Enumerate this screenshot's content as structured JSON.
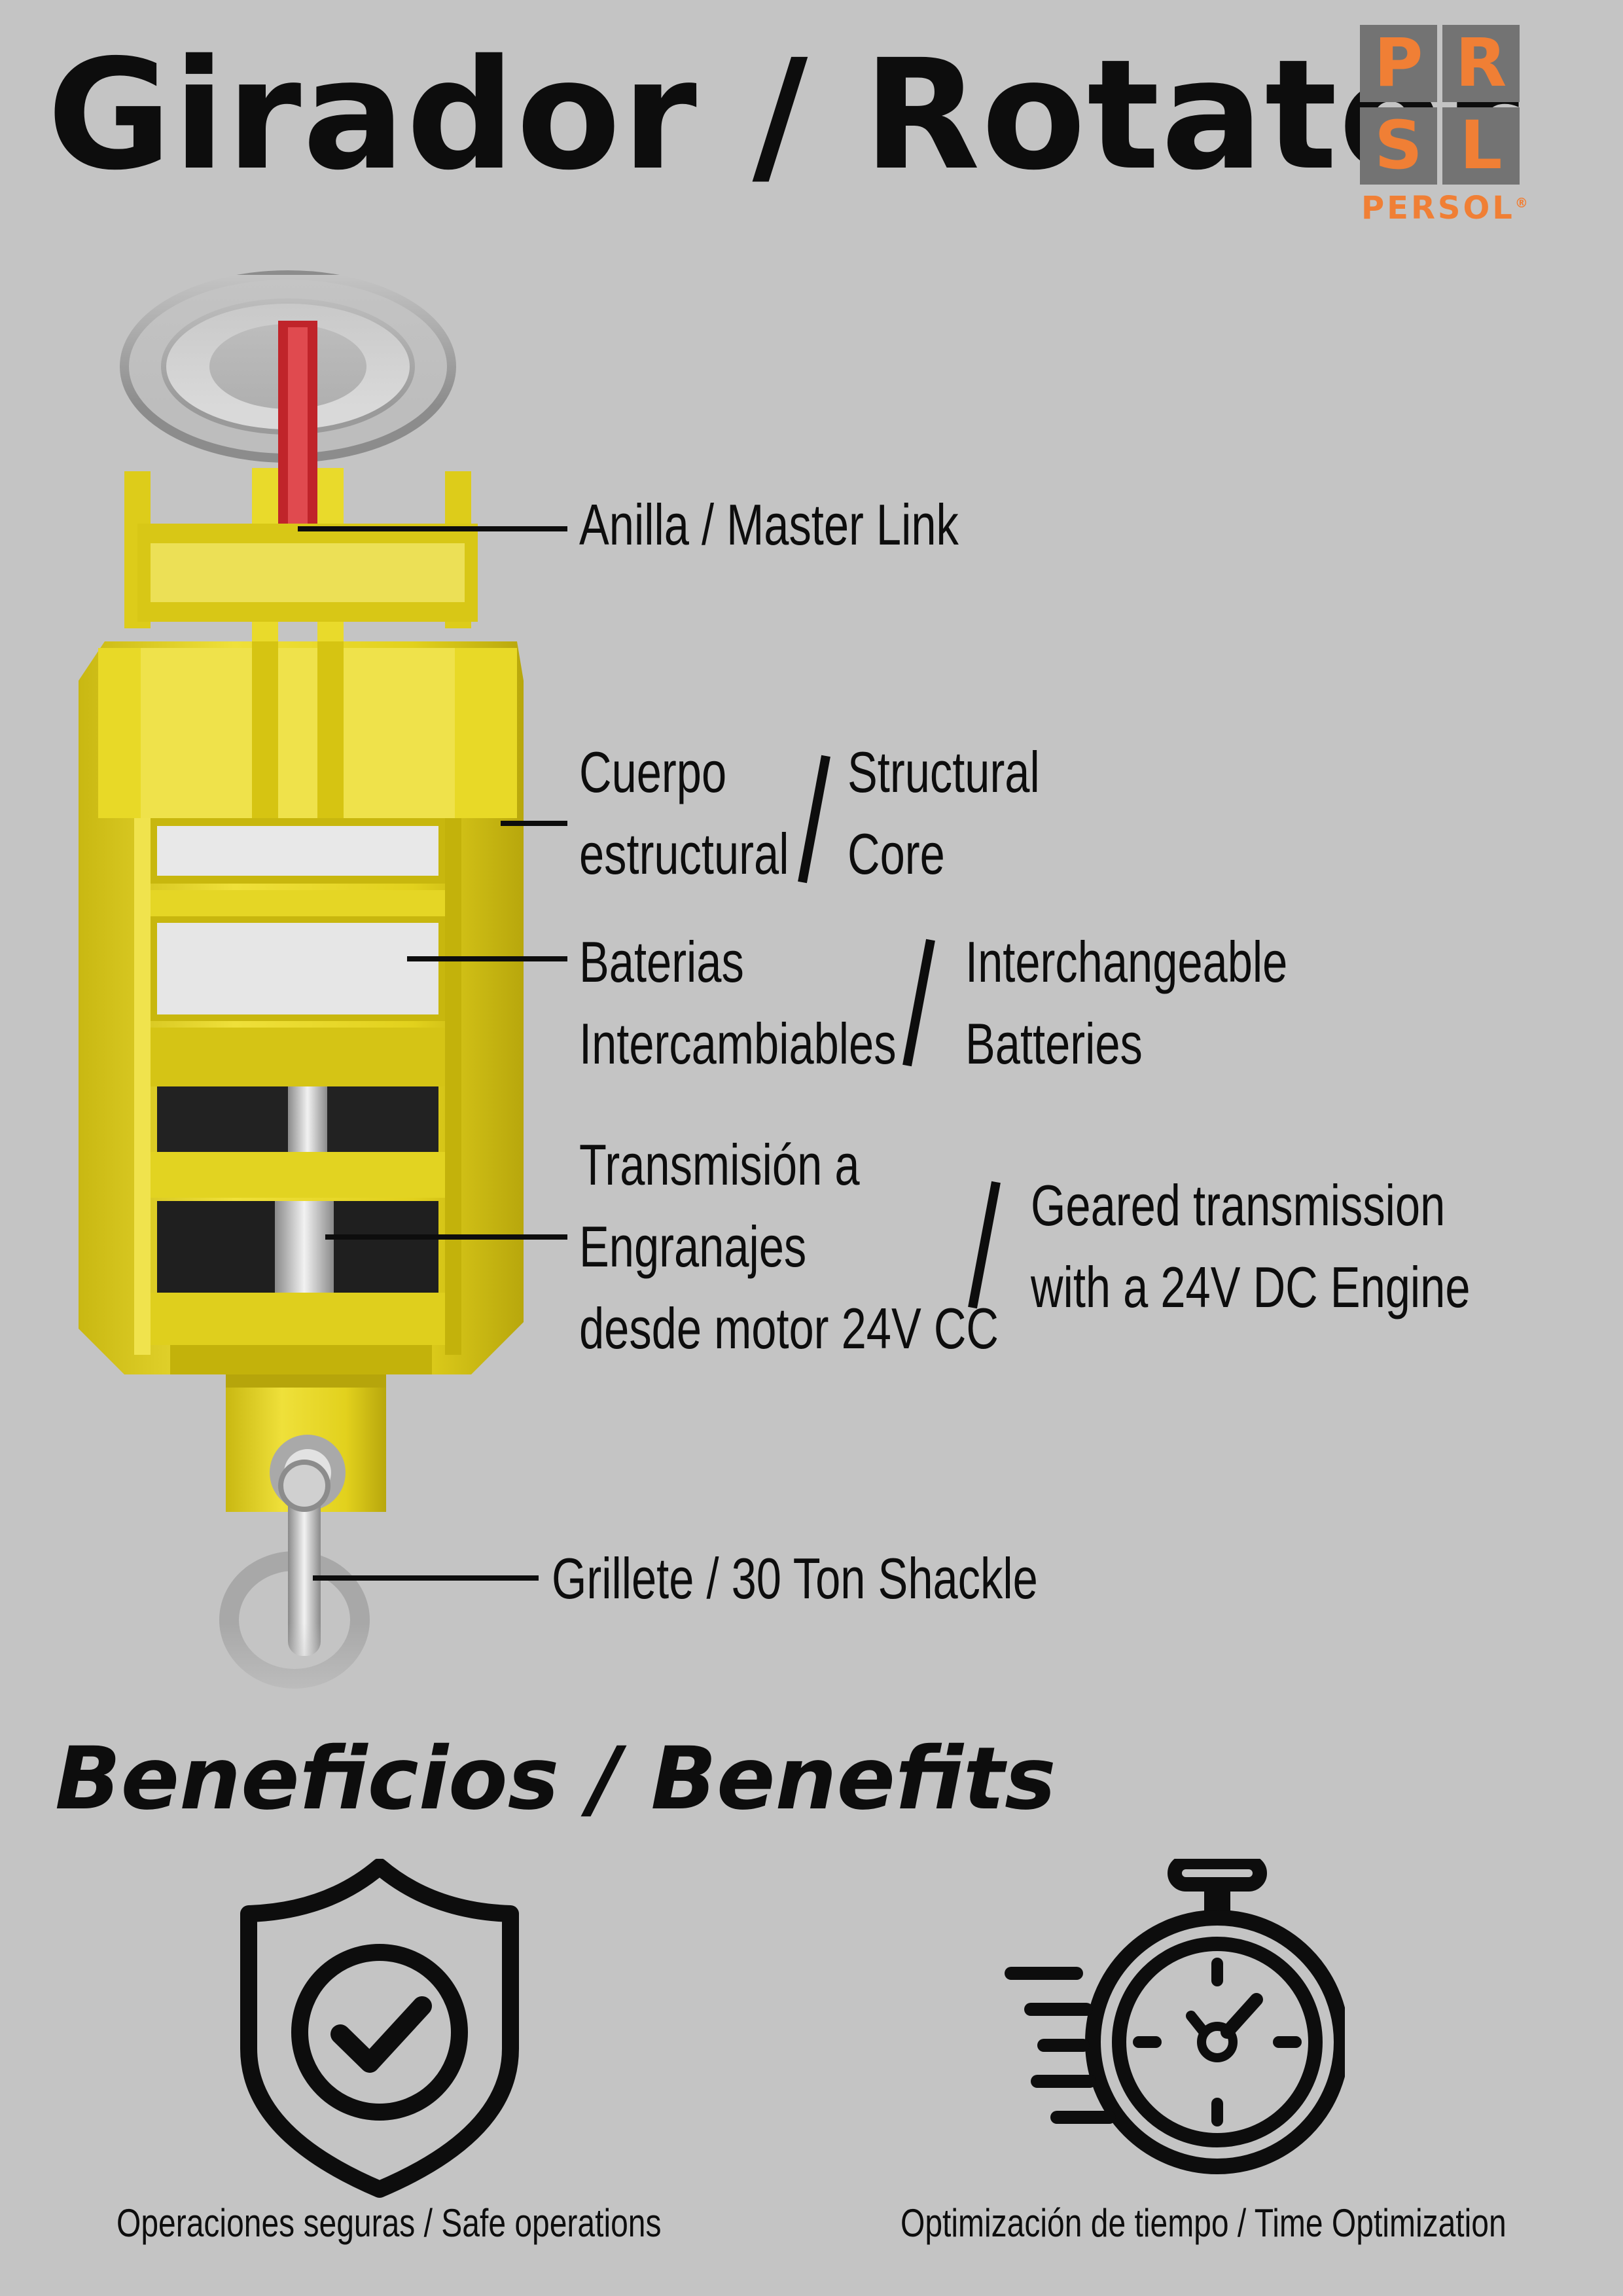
{
  "header": {
    "title": "Girador / Rotator",
    "logo": {
      "letters": [
        "P",
        "R",
        "S",
        "L"
      ],
      "brand": "PERSOL",
      "registered_mark": "®",
      "color": "#f07f35",
      "tile_color": "#737373"
    }
  },
  "callouts": {
    "master_link": "Anilla / Master Link",
    "core": {
      "es_line1": "Cuerpo",
      "es_line2": "estructural",
      "en_line1": "Structural",
      "en_line2": "Core"
    },
    "batteries": {
      "es_line1": "Baterias",
      "es_line2": "Intercambiables",
      "en_line1": "Interchangeable",
      "en_line2": "Batteries"
    },
    "transmission": {
      "es_line1": "Transmisión a",
      "es_line2": "Engranajes",
      "es_line3": "desde motor 24V CC",
      "en_line1": "Geared transmission",
      "en_line2": "with a 24V DC Engine"
    },
    "shackle": "Grillete / 30 Ton Shackle"
  },
  "benefits": {
    "title": "Beneficios / Benefits",
    "items": [
      {
        "icon": "shield-check-icon",
        "label": "Operaciones seguras / Safe operations"
      },
      {
        "icon": "stopwatch-icon",
        "label": "Optimización de tiempo / Time Optimization"
      }
    ]
  },
  "colors": {
    "background": "#c4c4c4",
    "device_yellow": "#e6d51f",
    "master_link_red": "#c0242a",
    "text": "#0d0d0d"
  }
}
